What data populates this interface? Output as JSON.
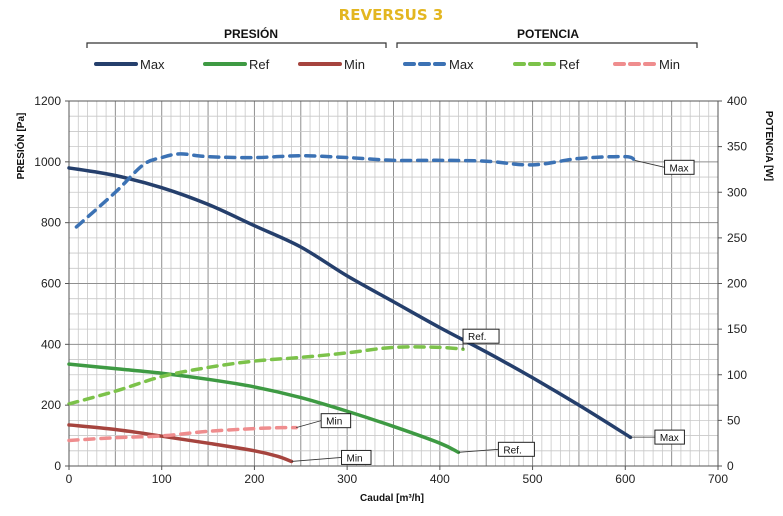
{
  "chart_data": {
    "type": "line",
    "title": "REVERSUS 3",
    "groups": {
      "left": "PRESIÓN",
      "right": "POTENCIA"
    },
    "xlabel": "Caudal [m³/h]",
    "ylabel": "PRESIÓN [Pa]",
    "y2label": "POTENCIA [W]",
    "xlim": [
      0,
      700
    ],
    "ylim": [
      0,
      1200
    ],
    "y2lim": [
      0,
      400
    ],
    "xticks": [
      "0",
      "100",
      "200",
      "300",
      "400",
      "500",
      "600",
      "700"
    ],
    "yticks": [
      "0",
      "200",
      "400",
      "600",
      "800",
      "1000",
      "1200"
    ],
    "y2ticks": [
      "0",
      "50",
      "100",
      "150",
      "200",
      "250",
      "300",
      "350",
      "400"
    ],
    "grid": true,
    "legend_position": "top",
    "series": [
      {
        "name": "Max",
        "group": "PRESIÓN",
        "axis": "left",
        "style": "solid",
        "color": "#253f6c",
        "label": "Max",
        "points": [
          [
            0,
            980
          ],
          [
            50,
            955
          ],
          [
            100,
            915
          ],
          [
            150,
            860
          ],
          [
            200,
            790
          ],
          [
            250,
            720
          ],
          [
            300,
            625
          ],
          [
            350,
            540
          ],
          [
            400,
            455
          ],
          [
            450,
            375
          ],
          [
            500,
            290
          ],
          [
            550,
            200
          ],
          [
            600,
            105
          ],
          [
            605,
            95
          ]
        ]
      },
      {
        "name": "Ref",
        "group": "PRESIÓN",
        "axis": "left",
        "style": "solid",
        "color": "#3e9a43",
        "label": "Ref.",
        "points": [
          [
            0,
            335
          ],
          [
            50,
            320
          ],
          [
            100,
            305
          ],
          [
            150,
            285
          ],
          [
            200,
            260
          ],
          [
            250,
            225
          ],
          [
            300,
            180
          ],
          [
            350,
            130
          ],
          [
            400,
            75
          ],
          [
            420,
            45
          ]
        ]
      },
      {
        "name": "Min",
        "group": "PRESIÓN",
        "axis": "left",
        "style": "solid",
        "color": "#a6443e",
        "label": "Min",
        "points": [
          [
            0,
            135
          ],
          [
            50,
            120
          ],
          [
            100,
            98
          ],
          [
            150,
            75
          ],
          [
            200,
            50
          ],
          [
            225,
            32
          ],
          [
            240,
            15
          ]
        ]
      },
      {
        "name": "Max",
        "group": "POTENCIA",
        "axis": "right",
        "style": "dashed",
        "color": "#3c72b4",
        "label": "Max",
        "points": [
          [
            8,
            262
          ],
          [
            50,
            300
          ],
          [
            80,
            330
          ],
          [
            100,
            338
          ],
          [
            120,
            342
          ],
          [
            150,
            339
          ],
          [
            200,
            338
          ],
          [
            250,
            340
          ],
          [
            300,
            338
          ],
          [
            350,
            335
          ],
          [
            400,
            335
          ],
          [
            450,
            334
          ],
          [
            500,
            330
          ],
          [
            550,
            337
          ],
          [
            600,
            339
          ],
          [
            610,
            335
          ]
        ]
      },
      {
        "name": "Ref",
        "group": "POTENCIA",
        "axis": "right",
        "style": "dashed",
        "color": "#7cc24a",
        "label": "Ref.",
        "points": [
          [
            0,
            68
          ],
          [
            50,
            82
          ],
          [
            100,
            98
          ],
          [
            150,
            108
          ],
          [
            200,
            115
          ],
          [
            250,
            119
          ],
          [
            300,
            124
          ],
          [
            350,
            130
          ],
          [
            400,
            130
          ],
          [
            425,
            128
          ]
        ]
      },
      {
        "name": "Min",
        "group": "POTENCIA",
        "axis": "right",
        "style": "dashed",
        "color": "#ef8d8e",
        "label": "Min",
        "points": [
          [
            0,
            28
          ],
          [
            50,
            31
          ],
          [
            100,
            33
          ],
          [
            150,
            38
          ],
          [
            200,
            41
          ],
          [
            230,
            42
          ],
          [
            245,
            42
          ]
        ]
      }
    ]
  }
}
